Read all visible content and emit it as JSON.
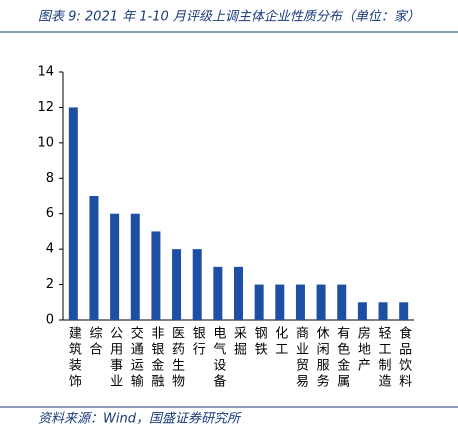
{
  "chart_data": {
    "type": "bar",
    "title": "图表 9:  2021 年 1-10 月评级上调主体企业性质分布（单位：家）",
    "source": "资料来源：Wind，国盛证券研究所",
    "categories": [
      "建筑装饰",
      "综合",
      "公用事业",
      "交通运输",
      "非银金融",
      "医药生物",
      "银行",
      "电气设备",
      "采掘",
      "钢铁",
      "化工",
      "商业贸易",
      "休闲服务",
      "有色金属",
      "房地产",
      "轻工制造",
      "食品饮料"
    ],
    "values": [
      12,
      7,
      6,
      6,
      5,
      4,
      4,
      3,
      3,
      2,
      2,
      2,
      2,
      2,
      1,
      1,
      1
    ],
    "color": "#1f4fa3",
    "ylim": [
      0,
      14
    ],
    "yticks": [
      0,
      2,
      4,
      6,
      8,
      10,
      12,
      14
    ],
    "grid": false
  }
}
